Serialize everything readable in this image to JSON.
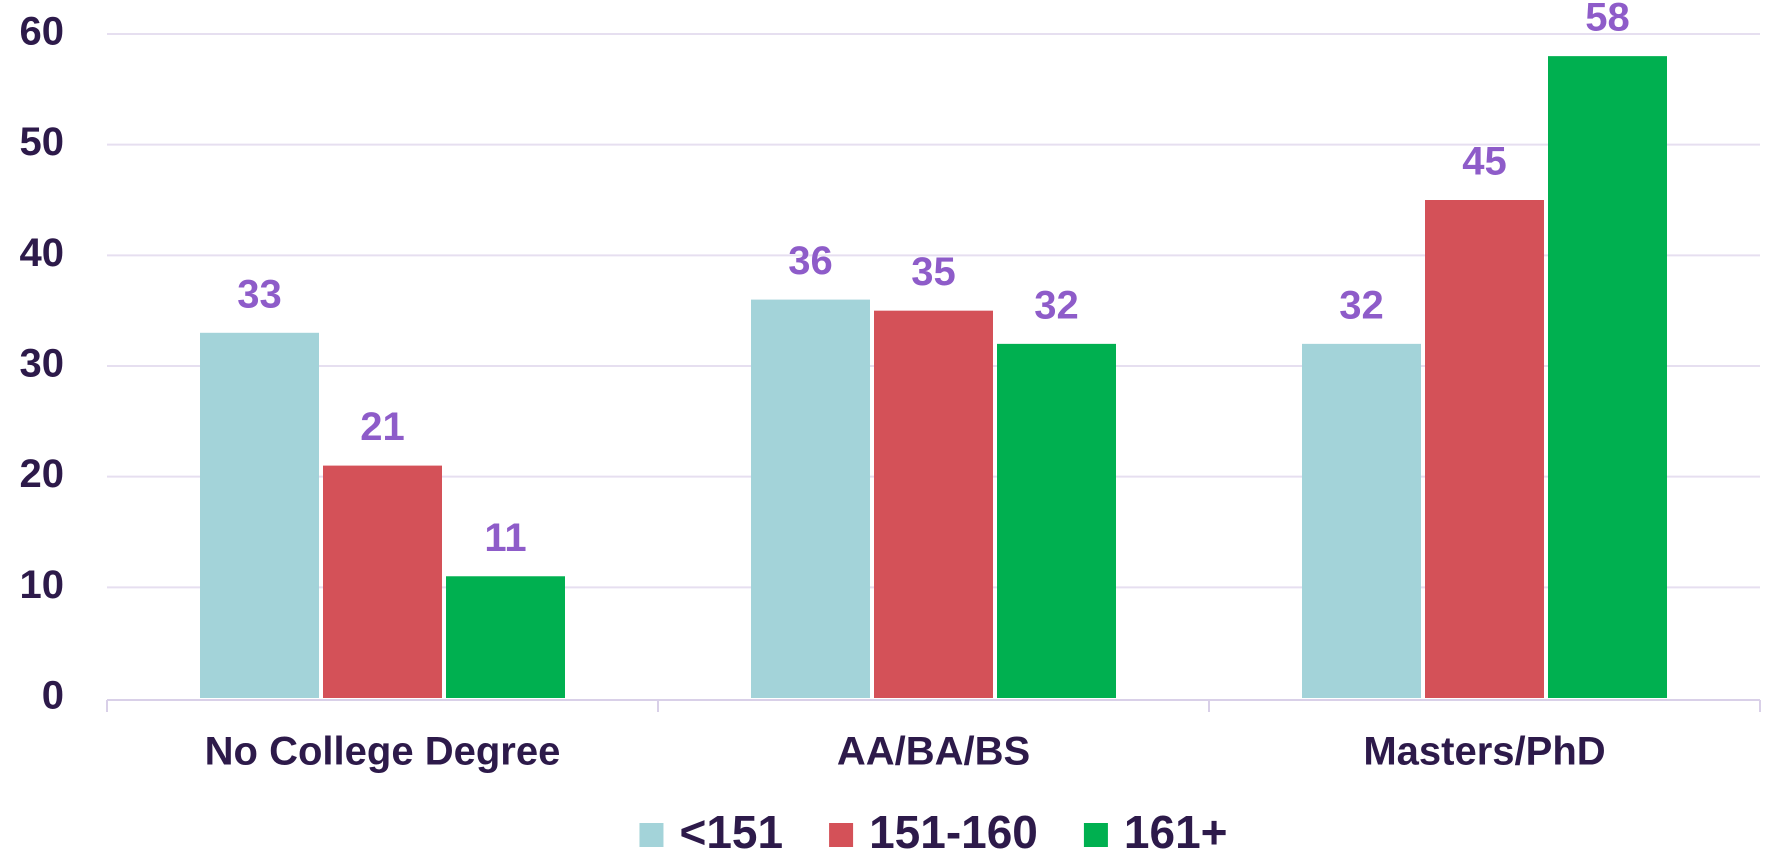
{
  "chart_data": {
    "type": "bar",
    "categories": [
      "No College Degree",
      "AA/BA/BS",
      "Masters/PhD"
    ],
    "series": [
      {
        "name": "<151",
        "color": "#a3d3d9",
        "values": [
          33,
          36,
          32
        ]
      },
      {
        "name": "151-160",
        "color": "#d45158",
        "values": [
          21,
          35,
          45
        ]
      },
      {
        "name": "161+",
        "color": "#00b050",
        "values": [
          11,
          32,
          58
        ]
      }
    ],
    "ylim": [
      0,
      60
    ],
    "yticks": [
      0,
      10,
      20,
      30,
      40,
      50,
      60
    ],
    "grid": true,
    "legend": "bottom"
  }
}
